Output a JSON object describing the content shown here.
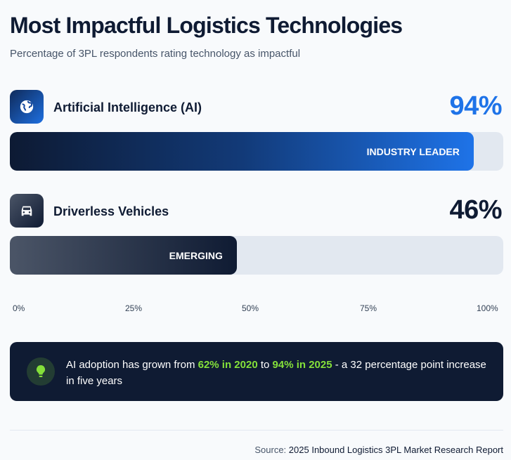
{
  "header": {
    "title": "Most Impactful Logistics Technologies",
    "subtitle": "Percentage of 3PL respondents rating technology as impactful"
  },
  "chart_data": {
    "type": "bar",
    "orientation": "horizontal",
    "title": "Most Impactful Logistics Technologies",
    "categories": [
      "Artificial Intelligence (AI)",
      "Driverless Vehicles"
    ],
    "values": [
      94,
      46
    ],
    "value_labels": [
      "94%",
      "46%"
    ],
    "bar_badges": [
      "INDUSTRY LEADER",
      "EMERGING"
    ],
    "icons": [
      "globe-icon",
      "car-icon"
    ],
    "xlim": [
      0,
      100
    ],
    "x_ticks": [
      "0%",
      "25%",
      "50%",
      "75%",
      "100%"
    ],
    "colors": {
      "ai_pct": "#1e73e8",
      "dv_pct": "#0f1b33"
    }
  },
  "callout": {
    "icon": "lightbulb-icon",
    "text_1": "AI adoption has grown from ",
    "highlight_1": "62% in 2020",
    "text_2": " to ",
    "highlight_2": "94% in 2025",
    "text_3": " - a 32 percentage point increase in five years",
    "highlight_color": "#84e03a"
  },
  "footer": {
    "source_label": "Source:",
    "source_text": "2025 Inbound Logistics 3PL Market Research Report"
  }
}
